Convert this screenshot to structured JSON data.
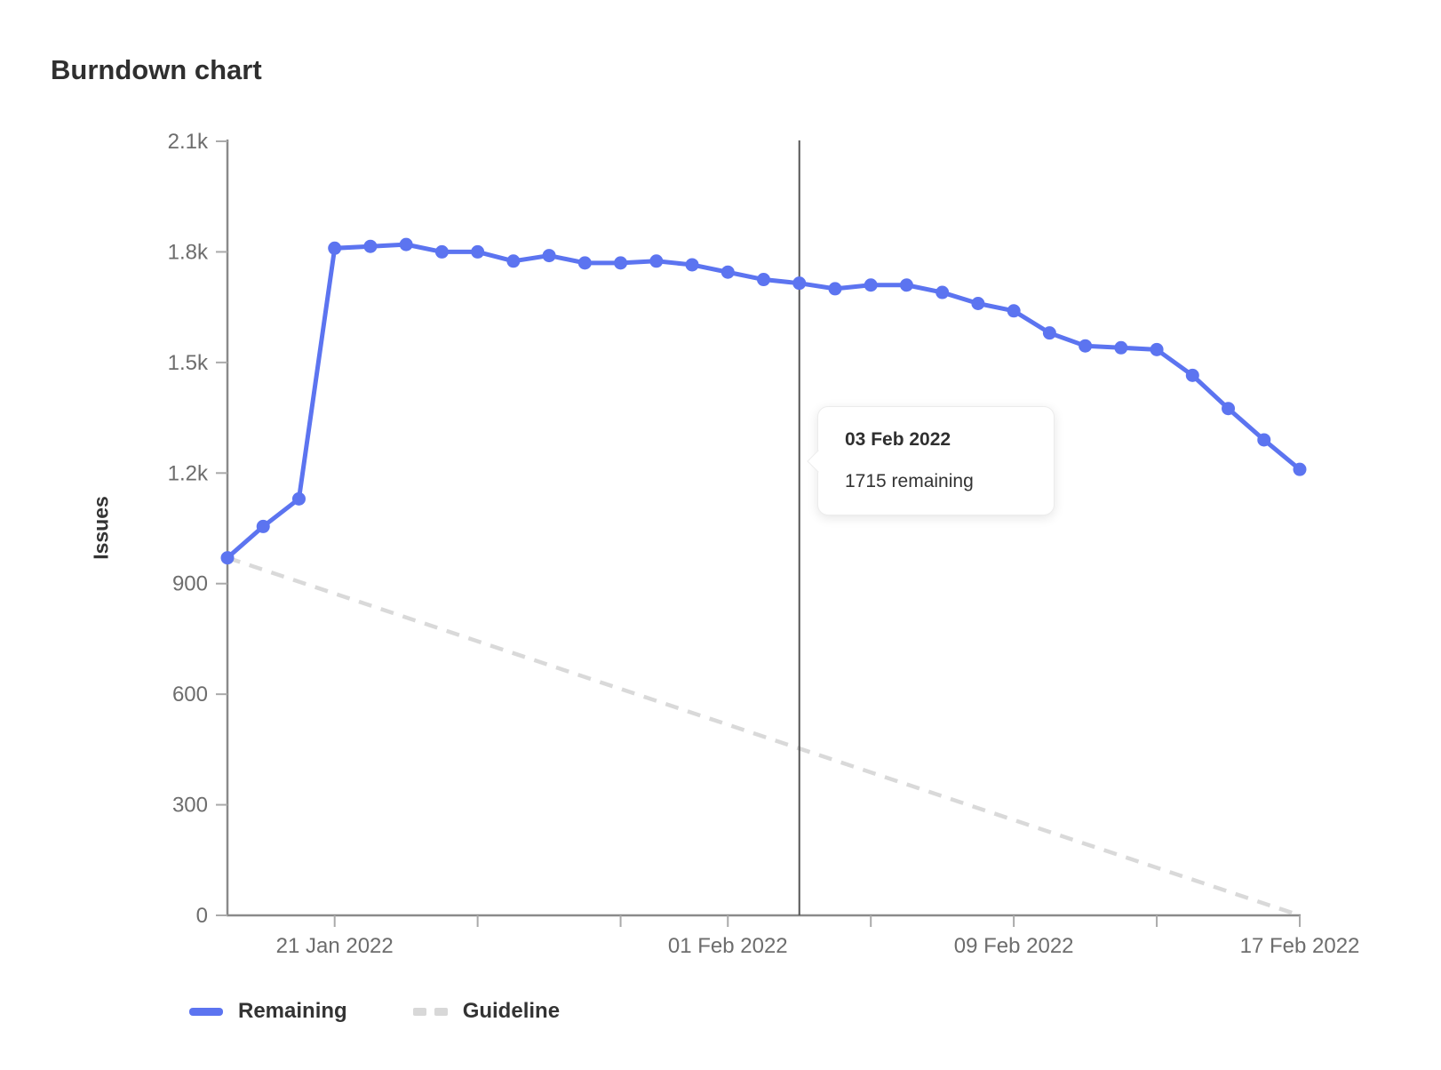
{
  "title": "Burndown chart",
  "tooltip": {
    "date": "03 Feb 2022",
    "value": "1715 remaining"
  },
  "legend": [
    {
      "label": "Remaining",
      "type": "solid",
      "color": "#5c74f0"
    },
    {
      "label": "Guideline",
      "type": "dashed",
      "color": "#d8d8d8"
    }
  ],
  "colors": {
    "remaining": "#5c74f0",
    "guideline": "#d9d9d9",
    "axis": "#8a8a8a",
    "tick": "#aaaaaa",
    "tick_text": "#6d6d6d",
    "today_line": "#565656",
    "text": "#333333"
  },
  "chart_data": {
    "type": "line",
    "title": "Burndown chart",
    "xlabel": "",
    "ylabel": "Issues",
    "ylim": [
      0,
      2100
    ],
    "grid": false,
    "legend_position": "bottom-left",
    "x": [
      "2022-01-18",
      "2022-01-19",
      "2022-01-20",
      "2022-01-21",
      "2022-01-22",
      "2022-01-23",
      "2022-01-24",
      "2022-01-25",
      "2022-01-26",
      "2022-01-27",
      "2022-01-28",
      "2022-01-29",
      "2022-01-30",
      "2022-01-31",
      "2022-02-01",
      "2022-02-02",
      "2022-02-03",
      "2022-02-04",
      "2022-02-05",
      "2022-02-06",
      "2022-02-07",
      "2022-02-08",
      "2022-02-09",
      "2022-02-10",
      "2022-02-11",
      "2022-02-12",
      "2022-02-13",
      "2022-02-14",
      "2022-02-15",
      "2022-02-16",
      "2022-02-17"
    ],
    "series": [
      {
        "name": "Remaining",
        "color": "#5c74f0",
        "style": "solid",
        "values": [
          970,
          1055,
          1130,
          1810,
          1815,
          1820,
          1800,
          1800,
          1775,
          1790,
          1770,
          1770,
          1775,
          1765,
          1745,
          1725,
          1715,
          1700,
          1710,
          1710,
          1690,
          1660,
          1640,
          1580,
          1545,
          1540,
          1535,
          1465,
          1375,
          1290,
          1210
        ]
      },
      {
        "name": "Guideline",
        "color": "#d9d9d9",
        "style": "dashed",
        "x_indices": [
          0,
          30
        ],
        "values": [
          970,
          0
        ]
      }
    ],
    "today_index": 16,
    "today_label": "03 Feb 2022",
    "today_value": 1715,
    "x_ticks": [
      {
        "index": 3,
        "label": "21 Jan 2022"
      },
      {
        "index": 7,
        "label": ""
      },
      {
        "index": 11,
        "label": ""
      },
      {
        "index": 14,
        "label": "01 Feb 2022"
      },
      {
        "index": 18,
        "label": ""
      },
      {
        "index": 22,
        "label": "09 Feb 2022"
      },
      {
        "index": 26,
        "label": ""
      },
      {
        "index": 30,
        "label": "17 Feb 2022"
      }
    ],
    "y_ticks": [
      {
        "value": 0,
        "label": "0"
      },
      {
        "value": 300,
        "label": "300"
      },
      {
        "value": 600,
        "label": "600"
      },
      {
        "value": 900,
        "label": "900"
      },
      {
        "value": 1200,
        "label": "1.2k"
      },
      {
        "value": 1500,
        "label": "1.5k"
      },
      {
        "value": 1800,
        "label": "1.8k"
      },
      {
        "value": 2100,
        "label": "2.1k"
      }
    ]
  }
}
